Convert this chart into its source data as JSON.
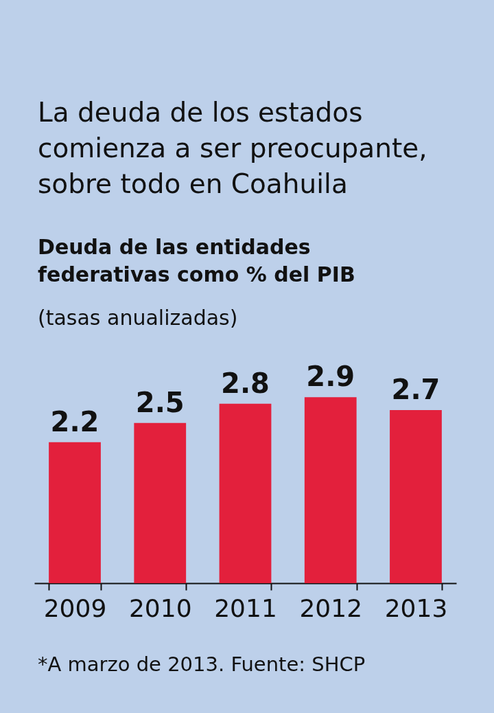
{
  "chart_data": {
    "type": "bar",
    "title": "La deuda de los estados comienza a ser preocupante, sobre todo en Coahuila",
    "subtitle": "Deuda de las entidades federativas como % del PIB",
    "ylabel": "(tasas anualizadas)",
    "categories": [
      "2009",
      "2010",
      "2011",
      "2012",
      "2013"
    ],
    "values": [
      2.2,
      2.5,
      2.8,
      2.9,
      2.7
    ],
    "color": "#e3203c",
    "data_labels": true,
    "grid": false,
    "annotations": [
      "*A marzo de 2013. Fuente: SHCP"
    ]
  }
}
